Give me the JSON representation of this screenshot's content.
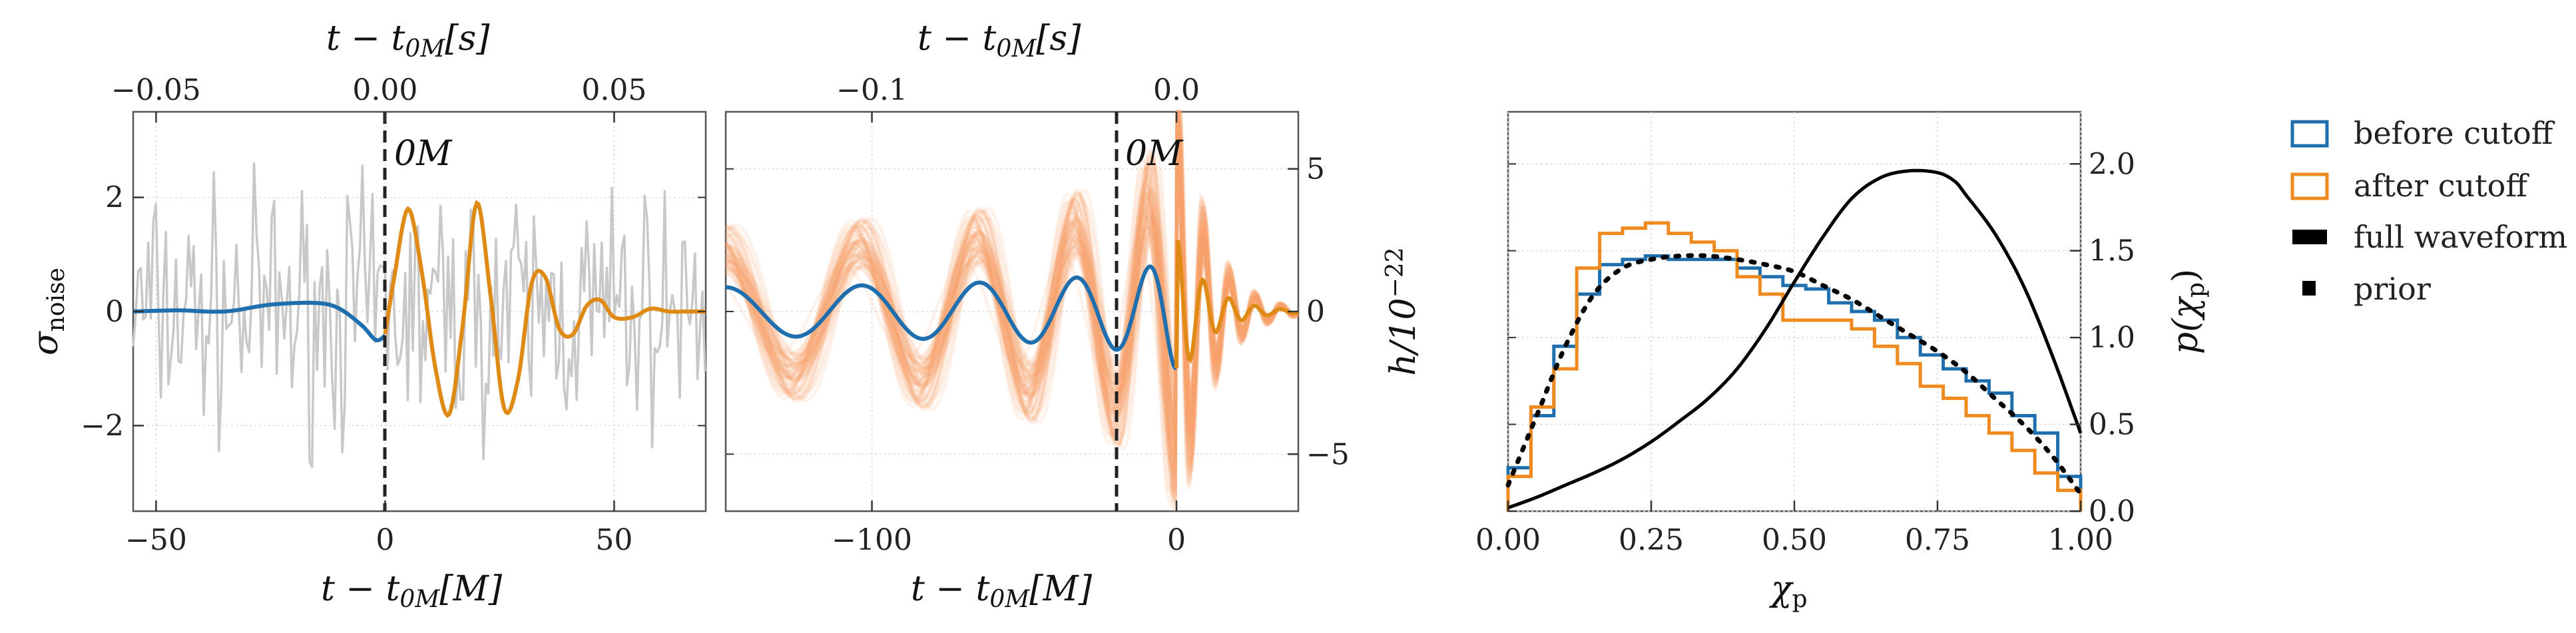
{
  "chart_data": [
    {
      "type": "line",
      "panel": "left",
      "xlabel": "t − t",
      "xlabel_sub": "0M",
      "xlabel_unit": "[M]",
      "xlabel_top": "t − t",
      "xlabel_top_sub": "0M",
      "xlabel_top_unit": "[s]",
      "ylabel": "σ",
      "ylabel_sub": "noise",
      "xlim": [
        -55,
        70
      ],
      "ylim": [
        -3.5,
        3.5
      ],
      "xticks": [
        -50,
        0,
        50
      ],
      "xtick_labels": [
        "−50",
        "0",
        "50"
      ],
      "xticks_top": [
        -0.05,
        0.0,
        0.05
      ],
      "xtick_top_labels": [
        "−0.05",
        "0.00",
        "0.05"
      ],
      "yticks": [
        -2,
        0,
        2
      ],
      "ytick_labels": [
        "−2",
        "0",
        "2"
      ],
      "vline": 0,
      "vline_label": "0M",
      "series": [
        {
          "role": "noise",
          "color": "#c8c8c8"
        },
        {
          "role": "before",
          "color": "#1f6fae",
          "x": [
            -55,
            -45,
            -35,
            -25,
            -15,
            -10,
            -5,
            -2,
            0
          ],
          "y": [
            0.0,
            0.02,
            0.0,
            0.12,
            0.15,
            0.05,
            -0.25,
            -0.5,
            -0.42
          ]
        },
        {
          "role": "after",
          "color": "#e08a16",
          "x": [
            0,
            2,
            5,
            8,
            11,
            14,
            17,
            20,
            23,
            26,
            29,
            32,
            35,
            38,
            41,
            44,
            47,
            50,
            54,
            58,
            62,
            66,
            70
          ],
          "y": [
            -0.4,
            0.6,
            1.8,
            0.7,
            -1.0,
            -1.8,
            -0.2,
            1.9,
            0.3,
            -1.7,
            -1.2,
            0.5,
            0.6,
            -0.3,
            -0.4,
            0.1,
            0.2,
            -0.1,
            -0.1,
            0.05,
            0.0,
            0.0,
            0.0
          ]
        }
      ]
    },
    {
      "type": "line",
      "panel": "middle",
      "xlabel": "t − t",
      "xlabel_sub": "0M",
      "xlabel_unit": "[M]",
      "xlabel_top": "t − t",
      "xlabel_top_sub": "0M",
      "xlabel_top_unit": "[s]",
      "ylabel": "h/10",
      "ylabel_sup": "−22",
      "xlim": [
        -148,
        40
      ],
      "ylim": [
        -7,
        7
      ],
      "xticks": [
        -100,
        0
      ],
      "xtick_labels": [
        "−100",
        "0"
      ],
      "xticks_top": [
        -0.1,
        0.0
      ],
      "xtick_top_labels": [
        "−0.1",
        "0.0"
      ],
      "yticks": [
        -5,
        0,
        5
      ],
      "ytick_labels": [
        "−5",
        "0",
        "5"
      ],
      "vline": 0,
      "vline_label": "0M",
      "series": [
        {
          "role": "posterior-band",
          "color": "#f5a070"
        },
        {
          "role": "before",
          "color": "#1f6fae"
        },
        {
          "role": "after",
          "color": "#e08a16"
        }
      ]
    },
    {
      "type": "line",
      "panel": "right",
      "xlabel": "χ",
      "xlabel_sub": "p",
      "ylabel": "p(χ",
      "ylabel_sub": "p",
      "ylabel_close": ")",
      "xlim": [
        0,
        1
      ],
      "ylim": [
        0,
        2.3
      ],
      "xticks": [
        0,
        0.25,
        0.5,
        0.75,
        1.0
      ],
      "xtick_labels": [
        "0.00",
        "0.25",
        "0.50",
        "0.75",
        "1.00"
      ],
      "yticks": [
        0,
        0.5,
        1.0,
        1.5,
        2.0
      ],
      "ytick_labels": [
        "0.0",
        "0.5",
        "1.0",
        "1.5",
        "2.0"
      ],
      "bin_edges": [
        0,
        0.04,
        0.08,
        0.12,
        0.16,
        0.2,
        0.24,
        0.28,
        0.32,
        0.36,
        0.4,
        0.44,
        0.48,
        0.52,
        0.56,
        0.6,
        0.64,
        0.68,
        0.72,
        0.76,
        0.8,
        0.84,
        0.88,
        0.92,
        0.96,
        1.0
      ],
      "series": [
        {
          "name": "before cutoff",
          "color": "#1f6fae",
          "values": [
            0.25,
            0.55,
            0.95,
            1.25,
            1.42,
            1.45,
            1.47,
            1.45,
            1.45,
            1.45,
            1.4,
            1.35,
            1.3,
            1.28,
            1.2,
            1.15,
            1.1,
            1.0,
            0.9,
            0.82,
            0.75,
            0.68,
            0.55,
            0.45,
            0.2
          ]
        },
        {
          "name": "after cutoff",
          "color": "#ef8a1f",
          "values": [
            0.2,
            0.6,
            0.82,
            1.4,
            1.6,
            1.63,
            1.66,
            1.6,
            1.55,
            1.5,
            1.35,
            1.25,
            1.1,
            1.1,
            1.1,
            1.05,
            0.95,
            0.85,
            0.72,
            0.65,
            0.55,
            0.45,
            0.35,
            0.22,
            0.12
          ]
        },
        {
          "name": "full waveform",
          "color": "#000000",
          "x": [
            0,
            0.05,
            0.1,
            0.15,
            0.2,
            0.25,
            0.3,
            0.35,
            0.4,
            0.45,
            0.5,
            0.55,
            0.6,
            0.65,
            0.7,
            0.75,
            0.78,
            0.8,
            0.85,
            0.9,
            0.95,
            1.0
          ],
          "y": [
            0.02,
            0.08,
            0.15,
            0.22,
            0.3,
            0.4,
            0.52,
            0.65,
            0.82,
            1.05,
            1.32,
            1.58,
            1.8,
            1.92,
            1.96,
            1.95,
            1.9,
            1.82,
            1.6,
            1.3,
            0.9,
            0.45
          ]
        },
        {
          "name": "prior",
          "color": "#000000",
          "x": [
            0,
            0.05,
            0.1,
            0.15,
            0.2,
            0.25,
            0.3,
            0.35,
            0.4,
            0.45,
            0.5,
            0.55,
            0.6,
            0.65,
            0.7,
            0.75,
            0.8,
            0.85,
            0.9,
            0.95,
            1.0
          ],
          "y": [
            0.15,
            0.55,
            0.95,
            1.25,
            1.4,
            1.45,
            1.47,
            1.47,
            1.45,
            1.42,
            1.38,
            1.3,
            1.22,
            1.12,
            1.02,
            0.92,
            0.8,
            0.65,
            0.5,
            0.32,
            0.1
          ]
        }
      ],
      "legend_position": "outside-right",
      "legend": [
        "before cutoff",
        "after cutoff",
        "full waveform",
        "prior"
      ]
    }
  ]
}
